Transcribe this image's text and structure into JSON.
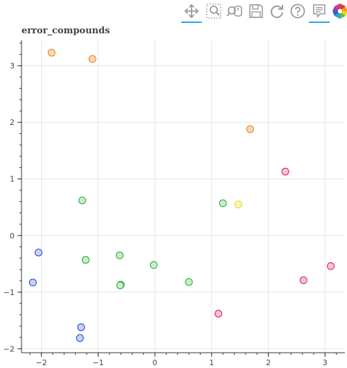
{
  "toolbar": {
    "tools": [
      {
        "name": "pan-tool",
        "icon": "pan-move-icon",
        "active": true
      },
      {
        "name": "box-zoom-tool",
        "icon": "box-zoom-icon",
        "active": false
      },
      {
        "name": "wheel-zoom-tool",
        "icon": "wheel-zoom-icon",
        "active": false
      },
      {
        "name": "save-tool",
        "icon": "save-icon",
        "active": false
      },
      {
        "name": "reset-tool",
        "icon": "reset-icon",
        "active": false
      },
      {
        "name": "help-tool",
        "icon": "help-icon",
        "active": false
      },
      {
        "name": "hover-tool",
        "icon": "hover-tooltip-icon",
        "active": true
      },
      {
        "name": "bokeh-logo",
        "icon": "bokeh-logo-icon",
        "active": false
      }
    ],
    "accent_color": "#26aae1"
  },
  "chart_data": {
    "type": "scatter",
    "title": "error_compounds",
    "xlabel": "",
    "ylabel": "",
    "xlim": [
      -2.35,
      3.35
    ],
    "ylim": [
      -2.07,
      3.45
    ],
    "xticks": [
      -2,
      -1,
      0,
      1,
      2,
      3
    ],
    "yticks": [
      -2,
      -1,
      0,
      1,
      2,
      3
    ],
    "grid": true,
    "series": [
      {
        "color": "#1f3fd6",
        "fill": "#c8d2f5",
        "x": [
          -2.05,
          -2.15,
          -1.3,
          -1.32
        ],
        "y": [
          -0.3,
          -0.83,
          -1.62,
          -1.81
        ]
      },
      {
        "color": "#21a83b",
        "fill": "#c9ecc9",
        "x": [
          -1.28,
          -1.22,
          -0.62,
          -0.6,
          -0.61,
          -0.02,
          0.6,
          1.2
        ],
        "y": [
          0.62,
          -0.43,
          -0.35,
          -0.87,
          -0.88,
          -0.52,
          -0.82,
          0.57
        ]
      },
      {
        "color": "#e67e22",
        "fill": "#fbd6b4",
        "x": [
          -1.82,
          -1.1,
          1.68
        ],
        "y": [
          3.23,
          3.12,
          1.88
        ]
      },
      {
        "color": "#e6d817",
        "fill": "#fbf6b8",
        "x": [
          1.47
        ],
        "y": [
          0.55
        ]
      },
      {
        "color": "#d6154a",
        "fill": "#f7c6d3",
        "x": [
          2.3,
          1.12,
          2.62,
          3.1
        ],
        "y": [
          1.13,
          -1.38,
          -0.79,
          -0.54
        ]
      }
    ]
  }
}
